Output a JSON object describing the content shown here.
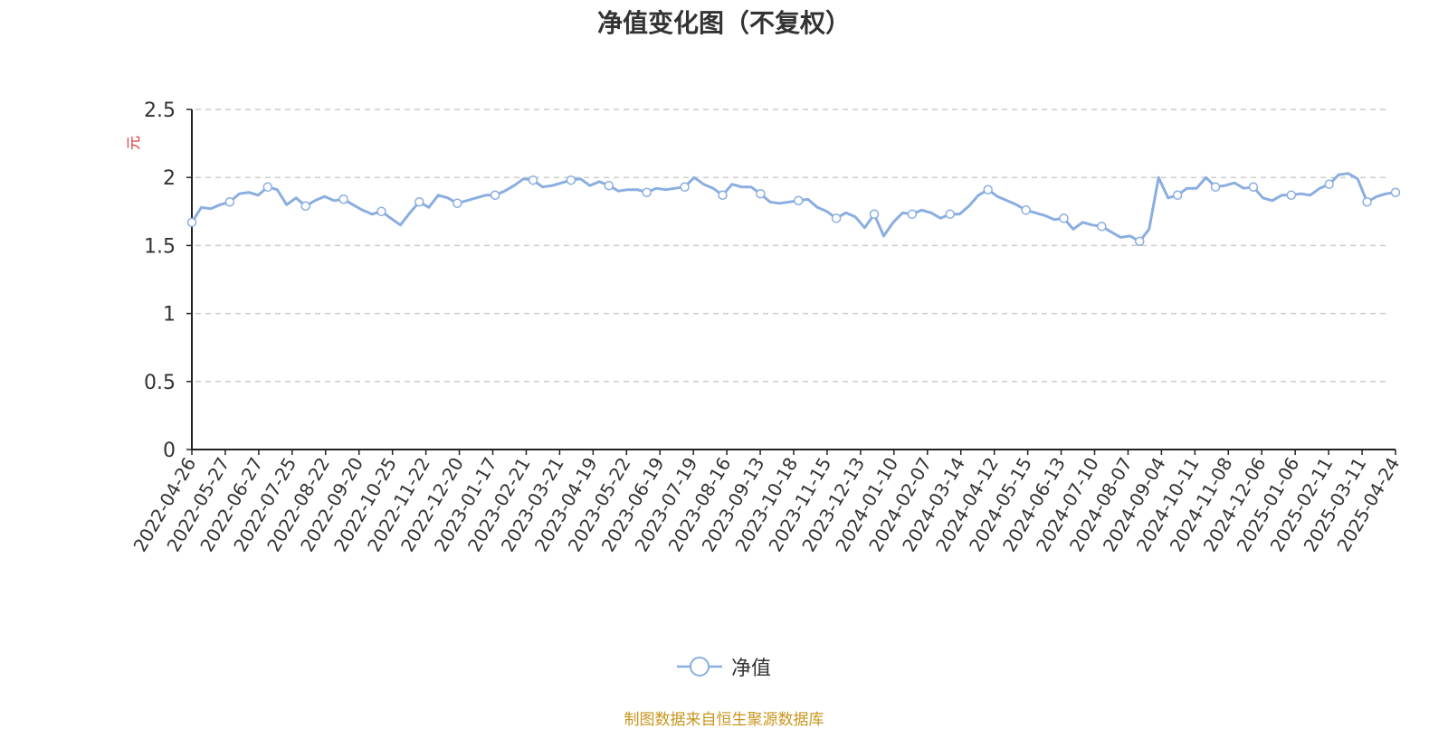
{
  "chart_data": {
    "type": "line",
    "title": "净值变化图（不复权）",
    "ylabel": "元",
    "ylim": [
      0,
      2.5
    ],
    "yticks": [
      "0",
      "0.5",
      "1",
      "1.5",
      "2",
      "2.5"
    ],
    "grid": true,
    "legend_position": "bottom-center",
    "x_tick_labels": [
      "2022-04-26",
      "2022-05-27",
      "2022-06-27",
      "2022-07-25",
      "2022-08-22",
      "2022-09-20",
      "2022-10-25",
      "2022-11-22",
      "2022-12-20",
      "2023-01-17",
      "2023-02-21",
      "2023-03-21",
      "2023-04-19",
      "2023-05-22",
      "2023-06-19",
      "2023-07-19",
      "2023-08-16",
      "2023-09-13",
      "2023-10-18",
      "2023-11-15",
      "2023-12-13",
      "2024-01-10",
      "2024-02-07",
      "2024-03-14",
      "2024-04-12",
      "2024-05-15",
      "2024-06-13",
      "2024-07-10",
      "2024-08-07",
      "2024-09-04",
      "2024-10-11",
      "2024-11-08",
      "2024-12-06",
      "2025-01-06",
      "2025-02-11",
      "2025-03-11",
      "2025-04-24"
    ],
    "series": [
      {
        "name": "净值",
        "color": "#8aaee0",
        "values": [
          1.67,
          1.78,
          1.77,
          1.8,
          1.82,
          1.88,
          1.89,
          1.87,
          1.93,
          1.91,
          1.8,
          1.85,
          1.79,
          1.83,
          1.86,
          1.83,
          1.84,
          1.8,
          1.76,
          1.73,
          1.75,
          1.7,
          1.65,
          1.74,
          1.82,
          1.78,
          1.87,
          1.85,
          1.81,
          1.83,
          1.85,
          1.87,
          1.87,
          1.9,
          1.94,
          1.99,
          1.98,
          1.93,
          1.94,
          1.96,
          1.98,
          1.99,
          1.94,
          1.97,
          1.94,
          1.9,
          1.91,
          1.91,
          1.89,
          1.92,
          1.91,
          1.92,
          1.93,
          2.0,
          1.95,
          1.92,
          1.87,
          1.95,
          1.93,
          1.93,
          1.88,
          1.82,
          1.81,
          1.82,
          1.83,
          1.84,
          1.78,
          1.75,
          1.7,
          1.74,
          1.71,
          1.63,
          1.73,
          1.57,
          1.67,
          1.74,
          1.73,
          1.76,
          1.74,
          1.7,
          1.73,
          1.73,
          1.79,
          1.87,
          1.91,
          1.86,
          1.83,
          1.8,
          1.76,
          1.74,
          1.72,
          1.69,
          1.7,
          1.62,
          1.67,
          1.65,
          1.64,
          1.6,
          1.56,
          1.57,
          1.53,
          1.62,
          2.0,
          1.85,
          1.87,
          1.92,
          1.92,
          2.0,
          1.93,
          1.94,
          1.96,
          1.92,
          1.93,
          1.85,
          1.83,
          1.87,
          1.87,
          1.88,
          1.87,
          1.92,
          1.95,
          2.02,
          2.03,
          1.99,
          1.82,
          1.86,
          1.88,
          1.89
        ]
      }
    ]
  },
  "legend": {
    "label": "净值"
  },
  "source_note": "制图数据来自恒生聚源数据库"
}
